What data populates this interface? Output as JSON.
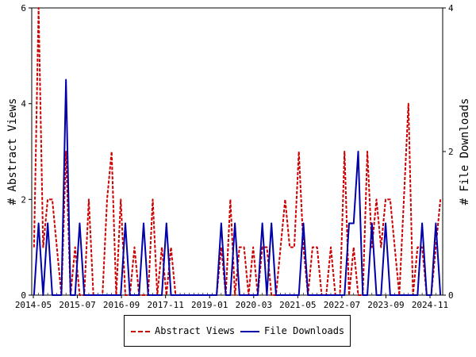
{
  "chart_data": {
    "type": "line",
    "ylabel_left": "# Abstract Views",
    "ylabel_right": "# File Downloads",
    "ylim_left": [
      0,
      6
    ],
    "ylim_right": [
      0,
      4
    ],
    "yticks_left": [
      "0",
      "2",
      "4",
      "6"
    ],
    "yticks_right": [
      "0",
      "2",
      "4"
    ],
    "x_tick_labels": [
      "2014-05",
      "2015-07",
      "2016-09",
      "2017-11",
      "2019-01",
      "2020-03",
      "2021-05",
      "2022-07",
      "2023-09",
      "2024-11"
    ],
    "grid": false,
    "legend_position": "bottom",
    "series": [
      {
        "name": "Abstract Views",
        "color": "#cc0000",
        "style": "dashed",
        "axis": "left",
        "values": [
          1,
          6,
          1,
          2,
          2,
          1,
          0,
          3,
          0,
          1,
          0,
          0,
          2,
          0,
          0,
          0,
          2,
          3,
          0,
          2,
          0,
          0,
          1,
          0,
          0,
          0,
          2,
          0,
          1,
          0,
          1,
          0,
          0,
          0,
          0,
          0,
          0,
          0,
          0,
          0,
          0,
          1,
          0,
          2,
          0,
          1,
          1,
          0,
          1,
          0,
          1,
          1,
          0,
          0,
          1,
          2,
          1,
          1,
          3,
          1,
          0,
          1,
          1,
          0,
          0,
          1,
          0,
          0,
          3,
          0,
          1,
          0,
          0,
          3,
          1,
          2,
          1,
          2,
          2,
          1,
          0,
          2,
          4,
          0,
          1,
          1,
          0,
          0,
          1,
          2
        ]
      },
      {
        "name": "File Downloads",
        "color": "#0000aa",
        "style": "solid",
        "axis": "right",
        "values": [
          0,
          1,
          0,
          1,
          0,
          0,
          0,
          3,
          0,
          0,
          1,
          0,
          0,
          0,
          0,
          0,
          0,
          0,
          0,
          0,
          1,
          0,
          0,
          0,
          1,
          0,
          0,
          0,
          0,
          1,
          0,
          0,
          0,
          0,
          0,
          0,
          0,
          0,
          0,
          0,
          0,
          1,
          0,
          0,
          1,
          0,
          0,
          0,
          0,
          0,
          1,
          0,
          1,
          0,
          0,
          0,
          0,
          0,
          0,
          1,
          0,
          0,
          0,
          0,
          0,
          0,
          0,
          0,
          0,
          1,
          1,
          2,
          0,
          0,
          1,
          0,
          0,
          1,
          0,
          0,
          0,
          0,
          0,
          0,
          0,
          1,
          0,
          0,
          1,
          0
        ]
      }
    ]
  }
}
